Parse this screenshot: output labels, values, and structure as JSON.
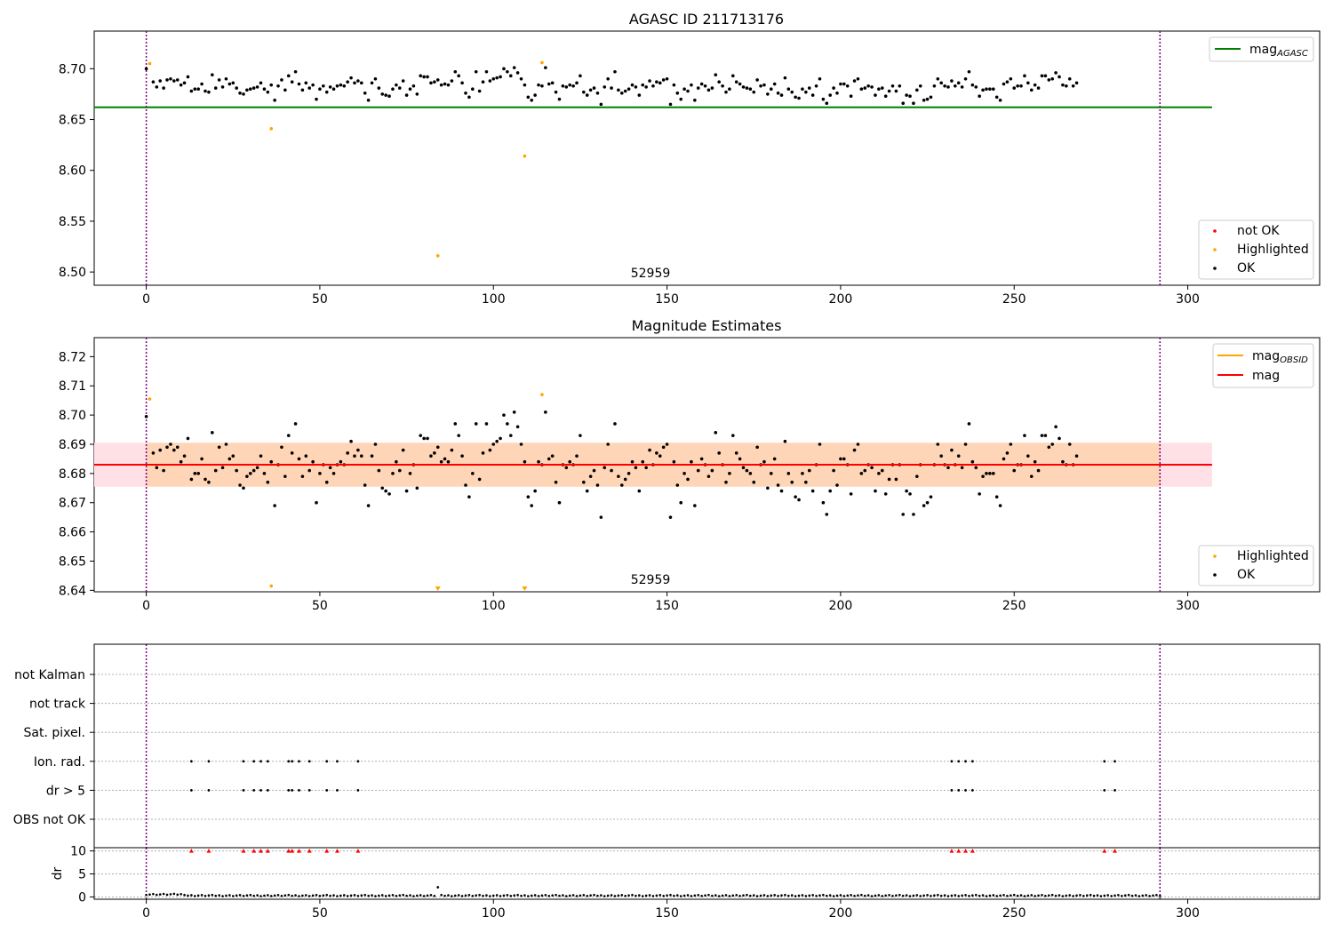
{
  "chart_data": [
    {
      "type": "scatter",
      "title": "AGASC ID 211713176",
      "annotation": "52959",
      "xlim": [
        -15,
        338
      ],
      "ylim": [
        8.487,
        8.737
      ],
      "xticks": [
        0,
        50,
        100,
        150,
        200,
        250,
        300
      ],
      "yticks": [
        8.5,
        8.55,
        8.6,
        8.65,
        8.7
      ],
      "ytick_labels": [
        "8.50",
        "8.55",
        "8.60",
        "8.65",
        "8.70"
      ],
      "vlines": [
        0,
        292
      ],
      "hline": {
        "label": "mag_AGASC",
        "label_main": "mag",
        "label_sub": "AGASC",
        "value": 8.662,
        "x_range": [
          -15,
          307
        ],
        "color": "#008000"
      },
      "legend_points": [
        {
          "name": "not OK",
          "color": "#ff0000"
        },
        {
          "name": "Highlighted",
          "color": "#ffa500"
        },
        {
          "name": "OK",
          "color": "#000000"
        }
      ],
      "highlighted": [
        {
          "x": 1,
          "y": 8.705
        },
        {
          "x": 36,
          "y": 8.641
        },
        {
          "x": 84,
          "y": 8.516
        },
        {
          "x": 109,
          "y": 8.614
        },
        {
          "x": 114,
          "y": 8.706
        }
      ],
      "ok_y_start": 8.7,
      "ok_y": [
        8.687,
        8.682,
        8.688,
        8.681,
        8.689,
        8.69,
        8.688,
        8.689,
        8.684,
        8.686,
        8.692,
        8.678,
        8.68,
        8.68,
        8.685,
        8.678,
        8.677,
        8.694,
        8.681,
        8.689,
        8.682,
        8.69,
        8.685,
        8.686,
        8.681,
        8.676,
        8.675,
        8.679,
        8.68,
        8.681,
        8.682,
        8.686,
        8.68,
        8.677,
        8.684,
        8.669,
        8.683,
        8.689,
        8.679,
        8.693,
        8.687,
        8.697,
        8.685,
        8.679,
        8.686,
        8.681,
        8.684,
        8.67,
        8.68,
        8.683,
        8.677,
        8.682,
        8.68,
        8.683,
        8.684,
        8.683,
        8.687,
        8.691,
        8.686,
        8.688,
        8.686,
        8.676,
        8.669,
        8.686,
        8.69,
        8.681,
        8.675,
        8.674,
        8.673,
        8.68,
        8.684,
        8.681,
        8.688,
        8.674,
        8.68,
        8.683,
        8.675,
        8.693,
        8.692,
        8.692,
        8.686,
        8.687,
        8.689,
        8.684,
        8.685,
        8.684,
        8.688,
        8.697,
        8.693,
        8.686,
        8.676,
        8.672,
        8.68,
        8.697,
        8.678,
        8.687,
        8.697,
        8.688,
        8.69,
        8.691,
        8.692,
        8.7,
        8.697,
        8.693,
        8.701,
        8.696,
        8.69,
        8.684,
        8.672,
        8.669,
        8.674,
        8.684,
        8.683,
        8.701,
        8.685,
        8.686,
        8.677,
        8.67,
        8.683,
        8.682,
        8.684,
        8.683,
        8.686,
        8.693,
        8.677,
        8.674,
        8.679,
        8.681,
        8.676,
        8.665,
        8.682,
        8.69,
        8.681,
        8.697,
        8.679,
        8.676,
        8.678,
        8.68,
        8.684,
        8.682,
        8.674,
        8.684,
        8.682,
        8.688,
        8.683,
        8.687,
        8.686,
        8.689,
        8.69,
        8.665,
        8.684,
        8.676,
        8.67,
        8.68,
        8.678,
        8.684,
        8.669,
        8.681,
        8.685,
        8.683,
        8.679,
        8.681,
        8.694,
        8.687,
        8.683,
        8.677,
        8.68,
        8.693,
        8.687,
        8.685,
        8.682,
        8.681,
        8.68,
        8.677,
        8.689,
        8.683,
        8.684,
        8.675,
        8.68,
        8.685,
        8.676,
        8.674,
        8.691,
        8.68,
        8.677,
        8.672,
        8.671,
        8.68,
        8.677,
        8.681,
        8.674,
        8.683,
        8.69,
        8.67,
        8.666,
        8.674,
        8.681,
        8.676,
        8.685,
        8.685,
        8.683,
        8.673,
        8.688,
        8.69,
        8.68,
        8.681,
        8.683,
        8.682,
        8.674,
        8.68,
        8.681,
        8.673,
        8.678,
        8.683,
        8.678,
        8.683,
        8.666,
        8.674,
        8.673,
        8.666,
        8.679,
        8.683,
        8.669,
        8.67,
        8.672,
        8.683,
        8.69,
        8.686,
        8.683,
        8.682,
        8.688,
        8.683,
        8.686,
        8.682,
        8.69,
        8.697,
        8.684,
        8.682,
        8.673,
        8.679,
        8.68,
        8.68,
        8.68,
        8.672,
        8.669,
        8.685,
        8.687,
        8.69,
        8.681,
        8.683,
        8.683,
        8.693,
        8.686,
        8.679,
        8.684,
        8.681,
        8.693,
        8.693,
        8.689,
        8.69,
        8.696,
        8.692,
        8.684,
        8.683,
        8.69,
        8.683,
        8.686
      ]
    },
    {
      "type": "scatter",
      "title": "Magnitude Estimates",
      "annotation": "52959",
      "xlim": [
        -15,
        338
      ],
      "ylim": [
        8.6395,
        8.7265
      ],
      "xticks": [
        0,
        50,
        100,
        150,
        200,
        250,
        300
      ],
      "yticks": [
        8.64,
        8.65,
        8.66,
        8.67,
        8.68,
        8.69,
        8.7,
        8.71,
        8.72
      ],
      "ytick_labels": [
        "8.64",
        "8.65",
        "8.66",
        "8.67",
        "8.68",
        "8.69",
        "8.70",
        "8.71",
        "8.72"
      ],
      "vlines": [
        0,
        292
      ],
      "band": {
        "low": 8.6755,
        "high": 8.6905,
        "x_range": [
          -15,
          307
        ],
        "outer_color": "#ffe0e6",
        "inner_color": "#ffd5b8"
      },
      "lines": [
        {
          "name": "mag_OBSID",
          "label_main": "mag",
          "label_sub": "OBSID",
          "color": "#ffa500"
        },
        {
          "name": "mag",
          "label_main": "mag",
          "label_sub": "",
          "color": "#ff0000"
        }
      ],
      "mag_line_value": 8.683,
      "legend_points": [
        {
          "name": "Highlighted",
          "color": "#ffa500"
        },
        {
          "name": "OK",
          "color": "#000000"
        }
      ],
      "highlighted": [
        {
          "x": 1,
          "y": 8.7055
        },
        {
          "x": 36,
          "y": 8.6415
        },
        {
          "x": 114,
          "y": 8.707
        }
      ],
      "highlighted_offscale": [
        84,
        109
      ],
      "ok_y_start": 8.6995
    },
    {
      "type": "scatter",
      "categories": [
        "not Kalman",
        "not track",
        "Sat. pixel.",
        "Ion. rad.",
        "dr > 5",
        "OBS not OK"
      ],
      "xlim": [
        -15,
        338
      ],
      "vlines": [
        0,
        292
      ],
      "flag_x": [
        13,
        18,
        28,
        31,
        33,
        35,
        41,
        42,
        44,
        47,
        52,
        55,
        61,
        232,
        234,
        236,
        238,
        276,
        279
      ],
      "flag_rows": [
        "Ion. rad.",
        "dr > 5"
      ]
    },
    {
      "type": "scatter",
      "ylabel": "dr",
      "xlim": [
        -15,
        338
      ],
      "ylim": [
        -0.5,
        10.7
      ],
      "xticks": [
        0,
        50,
        100,
        150,
        200,
        250,
        300
      ],
      "yticks": [
        0,
        5,
        10
      ],
      "ytick_labels": [
        "0",
        "5",
        "10"
      ],
      "vlines": [
        0,
        292
      ],
      "capped_value": 10,
      "capped_x": [
        13,
        18,
        28,
        31,
        33,
        35,
        41,
        42,
        44,
        47,
        52,
        55,
        61,
        232,
        234,
        236,
        238,
        276,
        279
      ],
      "outlier": {
        "x": 84,
        "y": 2.1
      },
      "dr_typical": 0.3
    }
  ]
}
